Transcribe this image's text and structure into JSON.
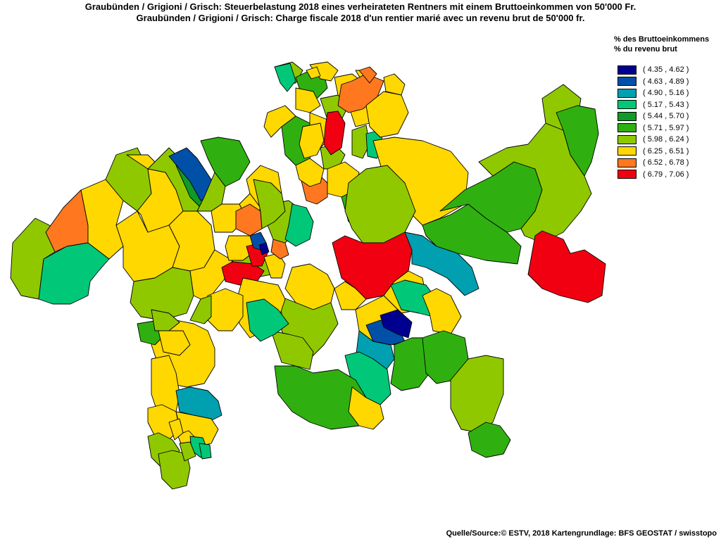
{
  "title_de": "Graubünden / Grigioni / Grisch: Steuerbelastung 2018 eines verheirateten Rentners mit einem Bruttoeinkommen von 50'000 Fr.",
  "title_fr": "Graubünden / Grigioni / Grisch: Charge fiscale 2018 d'un rentier marié avec un revenu brut de 50'000 fr.",
  "legend": {
    "title_line1": "% des Bruttoeinkommens",
    "title_line2": "% du revenu brut",
    "classes": [
      {
        "label": "( 4.35 , 4.62 )",
        "color": "#000090"
      },
      {
        "label": "( 4.63 , 4.89 )",
        "color": "#0050a8"
      },
      {
        "label": "( 4.90 , 5.16 )",
        "color": "#00a0b0"
      },
      {
        "label": "( 5.17 , 5.43 )",
        "color": "#00c878"
      },
      {
        "label": "( 5.44 , 5.70 )",
        "color": "#109a28"
      },
      {
        "label": "( 5.71 , 5.97 )",
        "color": "#30b010"
      },
      {
        "label": "( 5.98 , 6.24 )",
        "color": "#90c800"
      },
      {
        "label": "( 6.25 , 6.51 )",
        "color": "#ffd800"
      },
      {
        "label": "( 6.52 , 6.78 )",
        "color": "#ff7820"
      },
      {
        "label": "( 6.79 , 7.06 )",
        "color": "#f00010"
      }
    ]
  },
  "source": "Quelle/Source:© ESTV, 2018 Kartengrundlage: BFS GEOSTAT / swisstopo"
}
